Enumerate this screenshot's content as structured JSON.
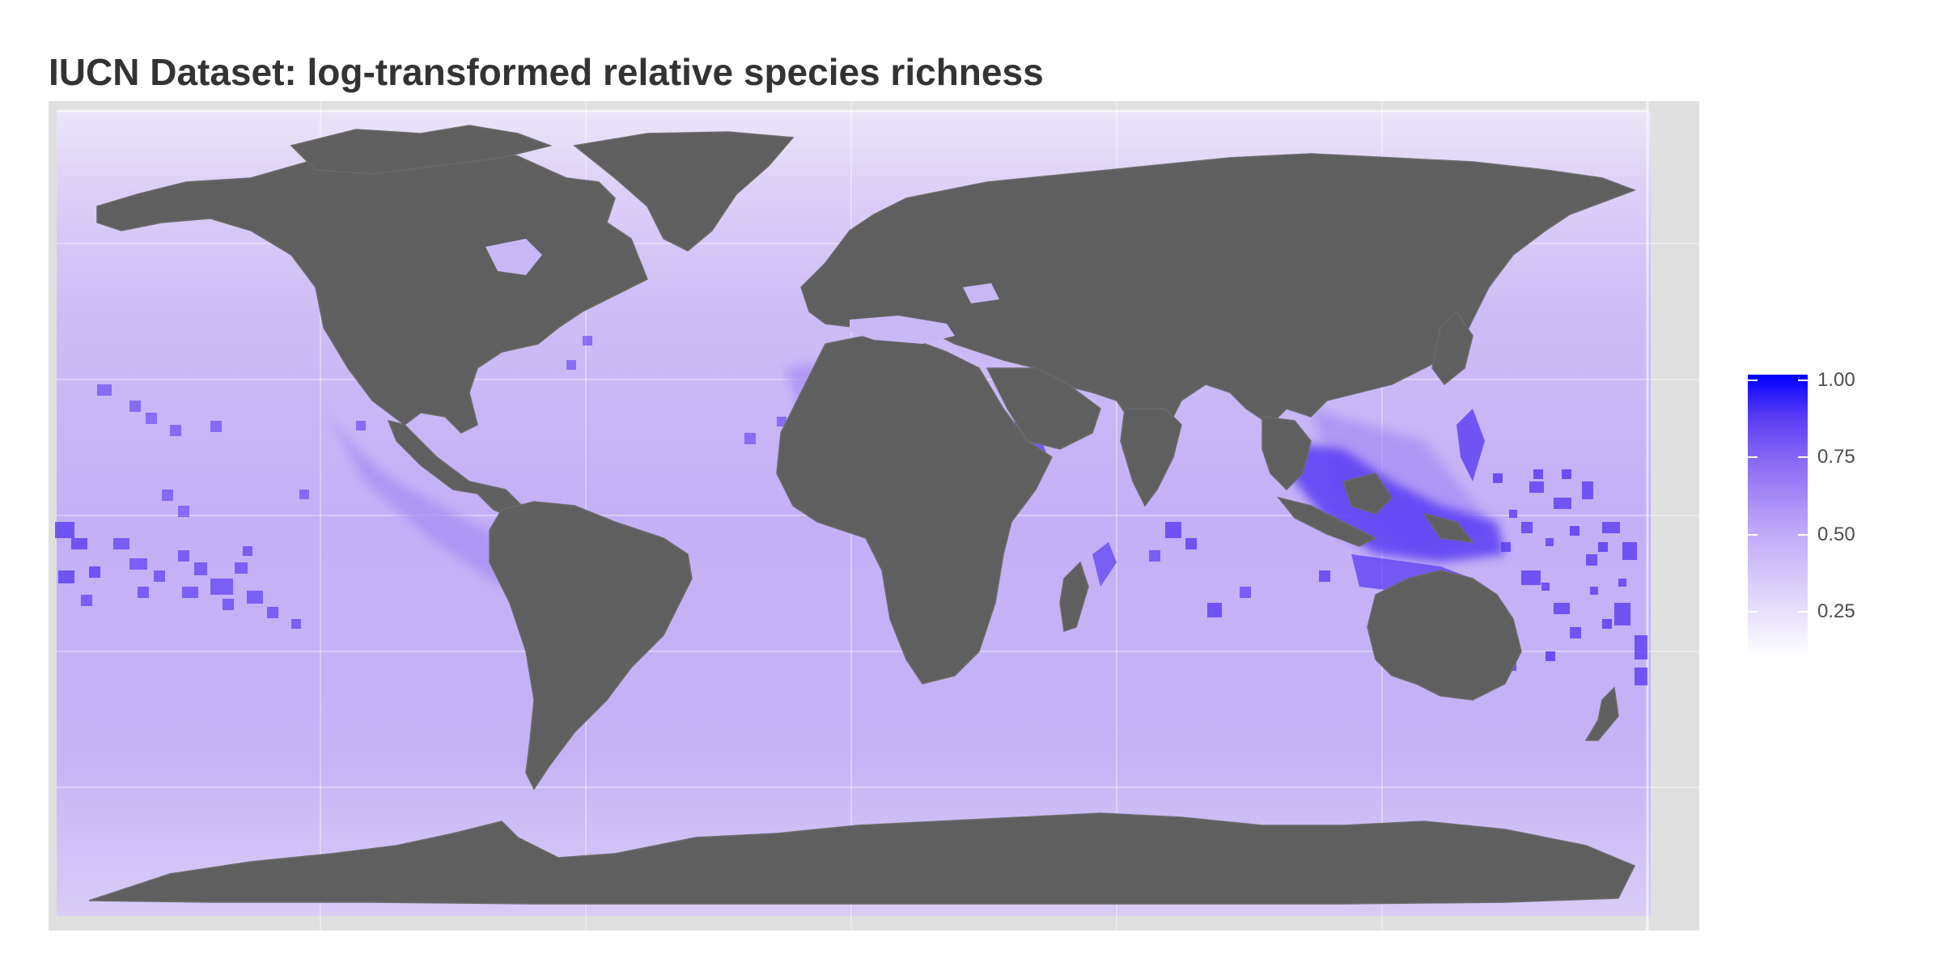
{
  "title": "IUCN Dataset: log-transformed relative species richness",
  "legend": {
    "labels": [
      "1.00",
      "0.75",
      "0.50",
      "0.25"
    ],
    "values": [
      1.0,
      0.75,
      0.5,
      0.25
    ],
    "range": [
      0.12,
      1.0
    ],
    "color_low": "#ffffff",
    "color_high": "#0000ff"
  },
  "colors": {
    "land": "#5f5f5f",
    "ocean": "#c8b8f6",
    "panel": "#e0e0e0",
    "grid": "#ffffff",
    "hotspot": "#5a3cf3"
  }
}
